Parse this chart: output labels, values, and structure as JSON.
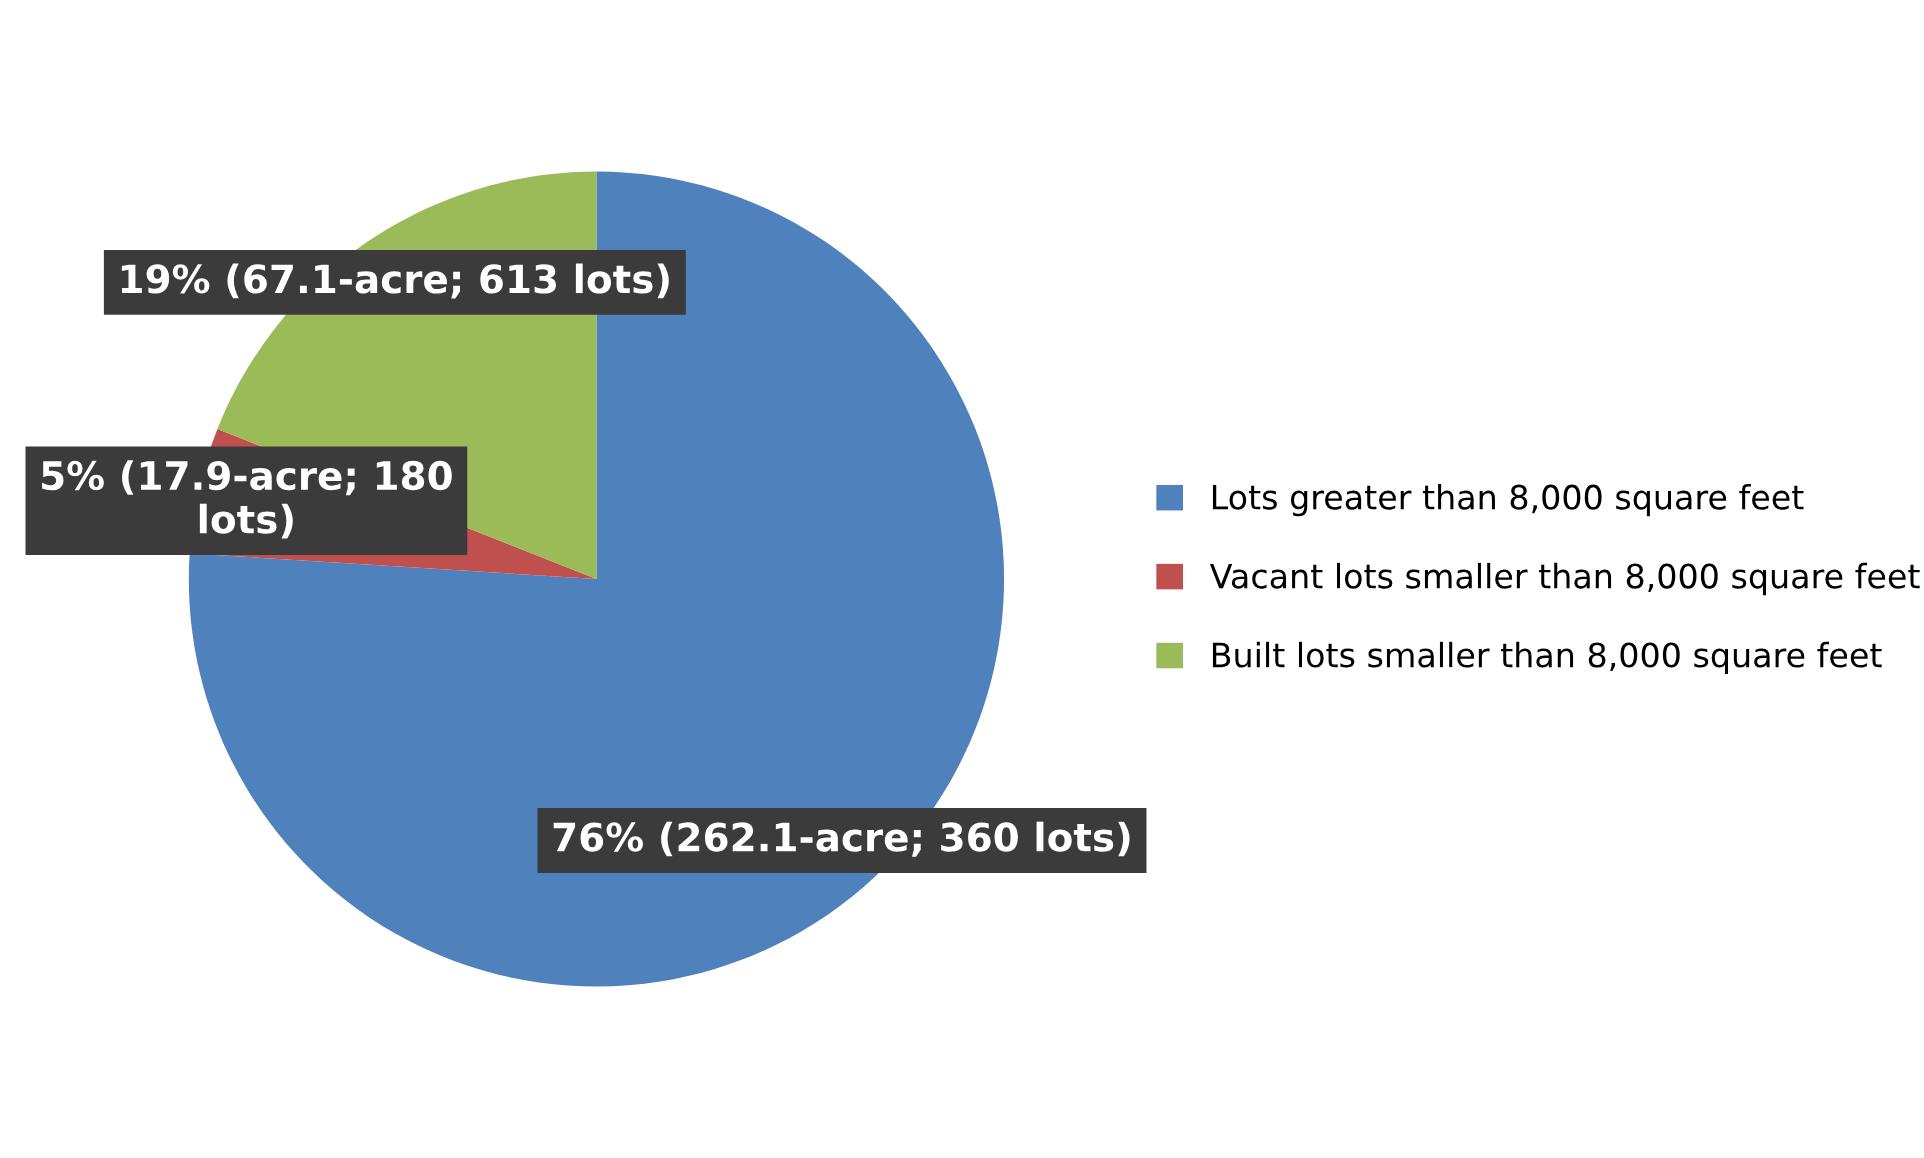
{
  "chart_data": {
    "type": "pie",
    "categories": [
      "Lots greater than 8,000 square feet",
      "Vacant lots smaller than 8,000 square feet",
      "Built lots smaller than 8,000 square feet"
    ],
    "values": [
      76,
      5,
      19
    ],
    "colors": [
      "#4f81bd",
      "#c0504d",
      "#9bbb59"
    ],
    "value_labels": [
      "76% (262.1-acre; 360 lots)",
      "5% (17.9-acre; 180 lots)",
      "19% (67.1-acre; 613 lots)"
    ],
    "legend": "right"
  }
}
